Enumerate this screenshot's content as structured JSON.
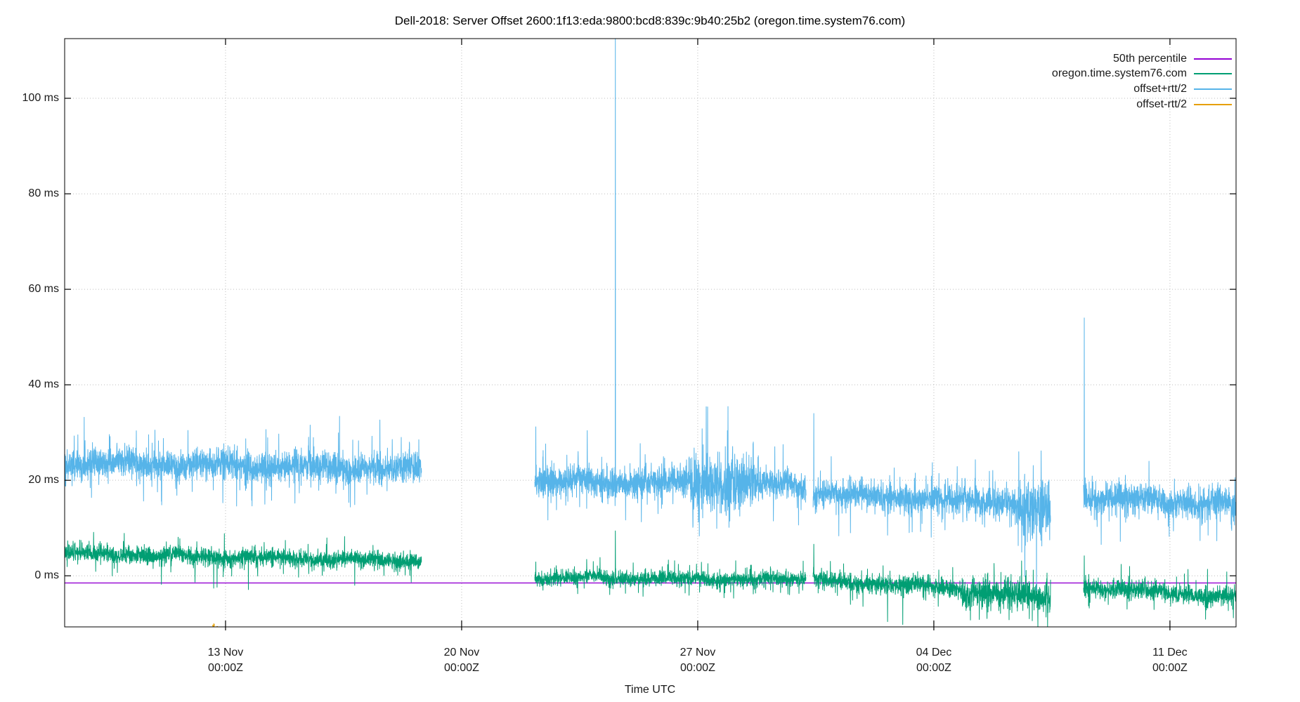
{
  "chart_data": {
    "type": "line",
    "title": "Dell-2018: Server Offset 2600:1f13:eda:9800:bcd8:839c:9b40:25b2 (oregon.time.system76.com)",
    "xlabel": "Time UTC",
    "y_unit": "ms",
    "grid": true,
    "legend_position": "top-right-inside",
    "x_domain_days": [
      0,
      34.73
    ],
    "x_epoch_note": "day 0 = left edge (~08 Nov), ticks weekly at 00:00Z",
    "y_domain_ms": [
      -10.7,
      112.5
    ],
    "y_ticks": [
      {
        "value": 0,
        "label": "0 ms"
      },
      {
        "value": 20,
        "label": "20 ms"
      },
      {
        "value": 40,
        "label": "40 ms"
      },
      {
        "value": 60,
        "label": "60 ms"
      },
      {
        "value": 80,
        "label": "80 ms"
      },
      {
        "value": 100,
        "label": "100 ms"
      }
    ],
    "x_ticks": [
      {
        "day": 4.77,
        "label_date": "13 Nov",
        "label_time": "00:00Z"
      },
      {
        "day": 11.77,
        "label_date": "20 Nov",
        "label_time": "00:00Z"
      },
      {
        "day": 18.77,
        "label_date": "27 Nov",
        "label_time": "00:00Z"
      },
      {
        "day": 25.77,
        "label_date": "04 Dec",
        "label_time": "00:00Z"
      },
      {
        "day": 32.77,
        "label_date": "11 Dec",
        "label_time": "00:00Z"
      }
    ],
    "series": [
      {
        "name": "50th percentile",
        "color": "#9400D3",
        "seed": 1,
        "width": 1.4,
        "segments": [
          {
            "t0": 0,
            "t1": 34.73,
            "v0": -1.5,
            "v1": -1.5,
            "noise": 0,
            "wobble": 0,
            "spike_prob": 0,
            "spike_mag": [
              0,
              0
            ],
            "p_down": 0.5,
            "spikes": []
          }
        ]
      },
      {
        "name": "oregon.time.system76.com",
        "color": "#009E73",
        "seed": 7,
        "width": 1,
        "segments": [
          {
            "t0": 0,
            "t1": 10.58,
            "v0": 4.7,
            "v1": 3.1,
            "noise": 0.8,
            "wobble": 0.45,
            "spike_prob": 0.012,
            "spike_mag": [
              1.5,
              4
            ],
            "p_down": 0.7,
            "spikes": [
              [
                1.05,
                7.2
              ],
              [
                2.87,
                -1.8
              ],
              [
                4.42,
                -2.6
              ],
              [
                4.52,
                -2.4
              ],
              [
                5.45,
                -2.9
              ],
              [
                8.6,
                -2.0
              ]
            ]
          },
          {
            "t0": 13.94,
            "t1": 21.98,
            "v0": -0.4,
            "v1": -0.7,
            "noise": 0.7,
            "wobble": 0.4,
            "spike_prob": 0.012,
            "spike_mag": [
              1.5,
              3.5
            ],
            "p_down": 0.7,
            "spikes": [
              [
                13.97,
                2.9
              ],
              [
                16.33,
                9.4
              ],
              [
                17.15,
                -4.3
              ],
              [
                19.55,
                -4.6
              ],
              [
                21.0,
                -3.4
              ]
            ]
          },
          {
            "t0": 22.19,
            "t1": 29.23,
            "v0": -0.9,
            "v1": -3.6,
            "noise": 0.85,
            "wobble": 0.45,
            "spike_prob": 0.012,
            "spike_mag": [
              1.5,
              4
            ],
            "p_down": 0.75,
            "windows": [
              {
                "t0": 26.6,
                "t1": 29.23,
                "noise": 1.5,
                "bias": -0.9
              }
            ],
            "spikes": [
              [
                22.21,
                6.6
              ],
              [
                23.3,
                -6.0
              ],
              [
                24.4,
                -9.6
              ],
              [
                24.85,
                -10.2
              ],
              [
                25.9,
                -6.4
              ],
              [
                28.6,
                -9.0
              ]
            ]
          },
          {
            "t0": 30.21,
            "t1": 34.73,
            "v0": -2.2,
            "v1": -4.6,
            "noise": 0.9,
            "wobble": 0.45,
            "spike_prob": 0.012,
            "spike_mag": [
              1.5,
              3.5
            ],
            "p_down": 0.75,
            "spikes": [
              [
                30.23,
                4.2
              ],
              [
                31.5,
                -7.0
              ],
              [
                33.2,
                0.4
              ],
              [
                34.5,
                -7.3
              ],
              [
                34.65,
                -8.8
              ]
            ]
          }
        ]
      },
      {
        "name": "offset+rtt/2",
        "color": "#56B4E9",
        "seed": 42,
        "width": 1,
        "segments": [
          {
            "t0": 0,
            "t1": 10.58,
            "v0": 23.8,
            "v1": 22.3,
            "noise": 1.45,
            "wobble": 0.7,
            "spike_prob": 0.012,
            "spike_mag": [
              3,
              8
            ],
            "p_down": 0.7,
            "spikes": [
              [
                0.58,
                33.2
              ],
              [
                2.87,
                15.6
              ],
              [
                5.1,
                14.6
              ],
              [
                6.83,
                15.2
              ],
              [
                8.15,
                33.4
              ],
              [
                8.6,
                14.9
              ],
              [
                10.5,
                28.5
              ]
            ]
          },
          {
            "t0": 13.94,
            "t1": 21.98,
            "v0": 19.8,
            "v1": 19.2,
            "noise": 1.5,
            "wobble": 0.8,
            "spike_prob": 0.012,
            "spike_mag": [
              3,
              8
            ],
            "p_down": 0.7,
            "windows": [
              {
                "t0": 18.55,
                "t1": 20.45,
                "noise": 3.0,
                "bias": 0
              }
            ],
            "spikes": [
              [
                13.97,
                31.2
              ],
              [
                16.33,
                114
              ],
              [
                17.1,
                11.3
              ],
              [
                18.9,
                30.8
              ],
              [
                21.3,
                27.5
              ]
            ]
          },
          {
            "t0": 22.19,
            "t1": 29.23,
            "v0": 17.3,
            "v1": 15.0,
            "noise": 1.35,
            "wobble": 0.7,
            "spike_prob": 0.012,
            "spike_mag": [
              3,
              7
            ],
            "p_down": 0.75,
            "windows": [
              {
                "t0": 28.25,
                "t1": 29.23,
                "noise": 2.8,
                "bias": -1.6
              }
            ],
            "spikes": [
              [
                22.21,
                34.0
              ],
              [
                23.3,
                9.0
              ],
              [
                24.4,
                8.5
              ],
              [
                26.1,
                9.6
              ],
              [
                27.0,
                24.3
              ]
            ]
          },
          {
            "t0": 30.21,
            "t1": 34.73,
            "v0": 16.6,
            "v1": 15.0,
            "noise": 1.45,
            "wobble": 0.7,
            "spike_prob": 0.012,
            "spike_mag": [
              3,
              7
            ],
            "p_down": 0.75,
            "spikes": [
              [
                30.23,
                54.0
              ],
              [
                31.3,
                7.2
              ],
              [
                32.15,
                24.0
              ],
              [
                33.9,
                8.5
              ],
              [
                34.6,
                9.5
              ]
            ]
          }
        ]
      },
      {
        "name": "offset-rtt/2",
        "color": "#E69F00",
        "seed": 3,
        "width": 1,
        "note": "series lies below visible range except two tiny blips near 12 Nov",
        "segments": [
          {
            "t0": 4.39,
            "t1": 4.44,
            "v0": -10.6,
            "v1": -10.7,
            "noise": 0.3,
            "wobble": 0,
            "spike_prob": 0,
            "spike_mag": [
              0,
              0
            ],
            "p_down": 0.5,
            "spikes": []
          },
          {
            "t0": 4.5,
            "t1": 4.54,
            "v0": -10.7,
            "v1": -10.6,
            "noise": 0.25,
            "wobble": 0,
            "spike_prob": 0,
            "spike_mag": [
              0,
              0
            ],
            "p_down": 0.5,
            "spikes": []
          }
        ]
      }
    ]
  }
}
